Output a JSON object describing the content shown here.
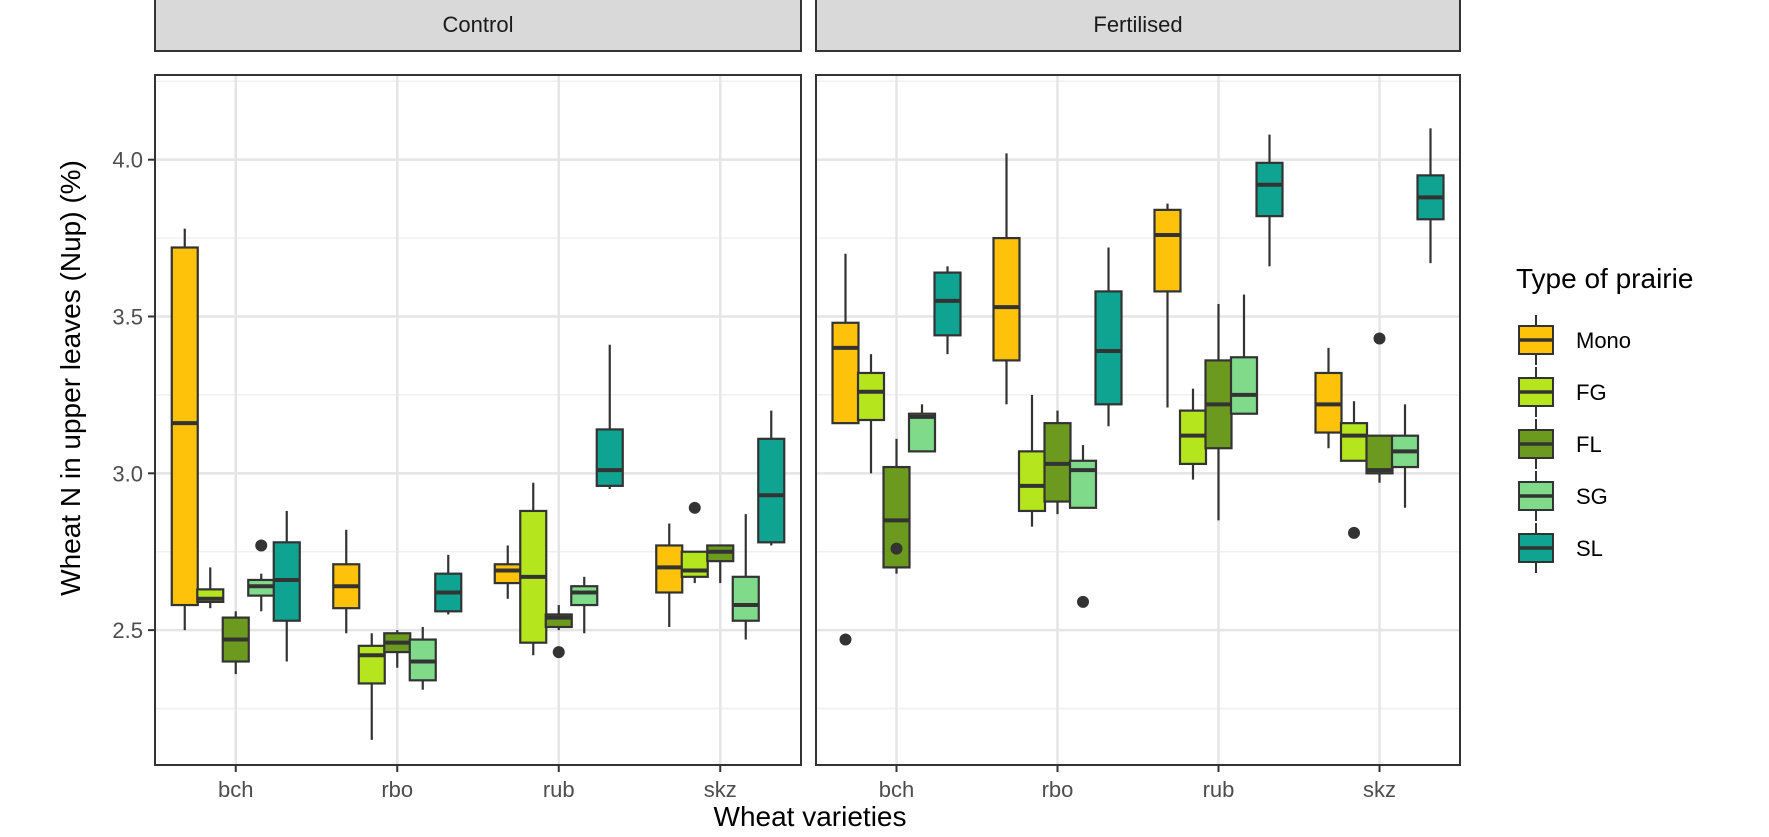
{
  "chart_data": {
    "type": "boxplot",
    "ylabel": "Wheat N in upper leaves (Nup) (%)",
    "xlabel": "Wheat varieties",
    "ylim": [
      2.07,
      4.27
    ],
    "yticks": [
      2.5,
      3.0,
      3.5,
      4.0
    ],
    "ytick_labels": [
      "2.5",
      "3.0",
      "3.5",
      "4.0"
    ],
    "grid": true,
    "categories": [
      "bch",
      "rbo",
      "rub",
      "skz"
    ],
    "legend": {
      "title": "Type of prairie",
      "position": "right",
      "items": [
        {
          "name": "Mono",
          "color": "#FFC20A"
        },
        {
          "name": "FG",
          "color": "#B5E61D"
        },
        {
          "name": "FL",
          "color": "#6B9A1F"
        },
        {
          "name": "SG",
          "color": "#7FDB8A"
        },
        {
          "name": "SL",
          "color": "#0FA391"
        }
      ]
    },
    "facets": [
      {
        "label": "Control",
        "groups": [
          {
            "category": "bch",
            "boxes": [
              {
                "series": "Mono",
                "min": 2.5,
                "q1": 2.58,
                "median": 3.16,
                "q3": 3.72,
                "max": 3.78,
                "outliers": []
              },
              {
                "series": "FG",
                "min": 2.57,
                "q1": 2.59,
                "median": 2.6,
                "q3": 2.63,
                "max": 2.7,
                "outliers": []
              },
              {
                "series": "FL",
                "min": 2.36,
                "q1": 2.4,
                "median": 2.47,
                "q3": 2.54,
                "max": 2.56,
                "outliers": []
              },
              {
                "series": "SG",
                "min": 2.56,
                "q1": 2.61,
                "median": 2.64,
                "q3": 2.66,
                "max": 2.68,
                "outliers": [
                  2.77
                ]
              },
              {
                "series": "SL",
                "min": 2.4,
                "q1": 2.53,
                "median": 2.66,
                "q3": 2.78,
                "max": 2.88,
                "outliers": []
              }
            ]
          },
          {
            "category": "rbo",
            "boxes": [
              {
                "series": "Mono",
                "min": 2.49,
                "q1": 2.57,
                "median": 2.64,
                "q3": 2.71,
                "max": 2.82,
                "outliers": []
              },
              {
                "series": "FG",
                "min": 2.15,
                "q1": 2.33,
                "median": 2.42,
                "q3": 2.45,
                "max": 2.49,
                "outliers": []
              },
              {
                "series": "FL",
                "min": 2.38,
                "q1": 2.43,
                "median": 2.46,
                "q3": 2.49,
                "max": 2.5,
                "outliers": []
              },
              {
                "series": "SG",
                "min": 2.31,
                "q1": 2.34,
                "median": 2.4,
                "q3": 2.47,
                "max": 2.51,
                "outliers": []
              },
              {
                "series": "SL",
                "min": 2.55,
                "q1": 2.56,
                "median": 2.62,
                "q3": 2.68,
                "max": 2.74,
                "outliers": []
              }
            ]
          },
          {
            "category": "rub",
            "boxes": [
              {
                "series": "Mono",
                "min": 2.6,
                "q1": 2.65,
                "median": 2.69,
                "q3": 2.71,
                "max": 2.77,
                "outliers": []
              },
              {
                "series": "FG",
                "min": 2.42,
                "q1": 2.46,
                "median": 2.67,
                "q3": 2.88,
                "max": 2.97,
                "outliers": []
              },
              {
                "series": "FL",
                "min": 2.5,
                "q1": 2.51,
                "median": 2.54,
                "q3": 2.55,
                "max": 2.58,
                "outliers": [
                  2.43
                ]
              },
              {
                "series": "SG",
                "min": 2.49,
                "q1": 2.58,
                "median": 2.62,
                "q3": 2.64,
                "max": 2.67,
                "outliers": []
              },
              {
                "series": "SL",
                "min": 2.95,
                "q1": 2.96,
                "median": 3.01,
                "q3": 3.14,
                "max": 3.41,
                "outliers": []
              }
            ]
          },
          {
            "category": "skz",
            "boxes": [
              {
                "series": "Mono",
                "min": 2.51,
                "q1": 2.62,
                "median": 2.7,
                "q3": 2.77,
                "max": 2.84,
                "outliers": []
              },
              {
                "series": "FG",
                "min": 2.65,
                "q1": 2.67,
                "median": 2.69,
                "q3": 2.75,
                "max": 2.75,
                "outliers": [
                  2.89
                ]
              },
              {
                "series": "FL",
                "min": 2.65,
                "q1": 2.72,
                "median": 2.75,
                "q3": 2.77,
                "max": 2.77,
                "outliers": []
              },
              {
                "series": "SG",
                "min": 2.47,
                "q1": 2.53,
                "median": 2.58,
                "q3": 2.67,
                "max": 2.87,
                "outliers": []
              },
              {
                "series": "SL",
                "min": 2.77,
                "q1": 2.78,
                "median": 2.93,
                "q3": 3.11,
                "max": 3.2,
                "outliers": []
              }
            ]
          }
        ]
      },
      {
        "label": "Fertilised",
        "groups": [
          {
            "category": "bch",
            "boxes": [
              {
                "series": "Mono",
                "min": 3.16,
                "q1": 3.16,
                "median": 3.4,
                "q3": 3.48,
                "max": 3.7,
                "outliers": [
                  2.47
                ]
              },
              {
                "series": "FG",
                "min": 3.0,
                "q1": 3.17,
                "median": 3.26,
                "q3": 3.32,
                "max": 3.38,
                "outliers": []
              },
              {
                "series": "FL",
                "min": 2.68,
                "q1": 2.7,
                "median": 2.85,
                "q3": 3.02,
                "max": 3.11,
                "outliers": [
                  2.76
                ]
              },
              {
                "series": "SG",
                "min": 3.07,
                "q1": 3.07,
                "median": 3.18,
                "q3": 3.19,
                "max": 3.22,
                "outliers": []
              },
              {
                "series": "SL",
                "min": 3.38,
                "q1": 3.44,
                "median": 3.55,
                "q3": 3.64,
                "max": 3.66,
                "outliers": []
              }
            ]
          },
          {
            "category": "rbo",
            "boxes": [
              {
                "series": "Mono",
                "min": 3.22,
                "q1": 3.36,
                "median": 3.53,
                "q3": 3.75,
                "max": 4.02,
                "outliers": []
              },
              {
                "series": "FG",
                "min": 2.83,
                "q1": 2.88,
                "median": 2.96,
                "q3": 3.07,
                "max": 3.25,
                "outliers": []
              },
              {
                "series": "FL",
                "min": 2.87,
                "q1": 2.91,
                "median": 3.03,
                "q3": 3.16,
                "max": 3.2,
                "outliers": []
              },
              {
                "series": "SG",
                "min": 2.89,
                "q1": 2.89,
                "median": 3.01,
                "q3": 3.04,
                "max": 3.09,
                "outliers": [
                  2.59
                ]
              },
              {
                "series": "SL",
                "min": 3.15,
                "q1": 3.22,
                "median": 3.39,
                "q3": 3.58,
                "max": 3.72,
                "outliers": []
              }
            ]
          },
          {
            "category": "rub",
            "boxes": [
              {
                "series": "Mono",
                "min": 3.21,
                "q1": 3.58,
                "median": 3.76,
                "q3": 3.84,
                "max": 3.86,
                "outliers": []
              },
              {
                "series": "FG",
                "min": 2.98,
                "q1": 3.03,
                "median": 3.12,
                "q3": 3.2,
                "max": 3.27,
                "outliers": []
              },
              {
                "series": "FL",
                "min": 2.85,
                "q1": 3.08,
                "median": 3.22,
                "q3": 3.36,
                "max": 3.54,
                "outliers": []
              },
              {
                "series": "SG",
                "min": 3.19,
                "q1": 3.19,
                "median": 3.25,
                "q3": 3.37,
                "max": 3.57,
                "outliers": []
              },
              {
                "series": "SL",
                "min": 3.66,
                "q1": 3.82,
                "median": 3.92,
                "q3": 3.99,
                "max": 4.08,
                "outliers": []
              }
            ]
          },
          {
            "category": "skz",
            "boxes": [
              {
                "series": "Mono",
                "min": 3.08,
                "q1": 3.13,
                "median": 3.22,
                "q3": 3.32,
                "max": 3.4,
                "outliers": []
              },
              {
                "series": "FG",
                "min": 3.04,
                "q1": 3.04,
                "median": 3.12,
                "q3": 3.16,
                "max": 3.23,
                "outliers": [
                  2.81
                ]
              },
              {
                "series": "FL",
                "min": 2.97,
                "q1": 3.0,
                "median": 3.01,
                "q3": 3.12,
                "max": 3.12,
                "outliers": [
                  3.43
                ]
              },
              {
                "series": "SG",
                "min": 2.89,
                "q1": 3.02,
                "median": 3.07,
                "q3": 3.12,
                "max": 3.22,
                "outliers": []
              },
              {
                "series": "SL",
                "min": 3.67,
                "q1": 3.81,
                "median": 3.88,
                "q3": 3.95,
                "max": 4.1,
                "outliers": []
              }
            ]
          }
        ]
      }
    ]
  }
}
